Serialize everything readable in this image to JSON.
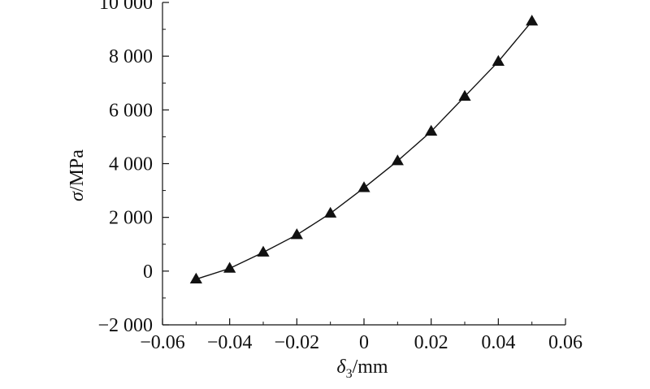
{
  "chart_data": {
    "type": "line",
    "title": "",
    "xlabel": {
      "symbol": "δ",
      "subscript": "3",
      "unit": "/mm"
    },
    "ylabel": {
      "symbol": "σ",
      "unit": "/MPa"
    },
    "xlim": [
      -0.06,
      0.06
    ],
    "ylim": [
      -2000,
      10000
    ],
    "xticks": [
      -0.06,
      -0.04,
      -0.02,
      0,
      0.02,
      0.04,
      0.06
    ],
    "xtick_labels": [
      "−0.06",
      "−0.04",
      "−0.02",
      "0",
      "0.02",
      "0.04",
      "0.06"
    ],
    "yticks": [
      -2000,
      0,
      2000,
      4000,
      6000,
      8000,
      10000
    ],
    "ytick_labels": [
      "−2 000",
      "0",
      "2 000",
      "4 000",
      "6 000",
      "8 000",
      "10 000"
    ],
    "grid": false,
    "series": [
      {
        "marker": "filled-triangle",
        "color": "#111111",
        "x": [
          -0.05,
          -0.04,
          -0.03,
          -0.02,
          -0.01,
          0,
          0.01,
          0.02,
          0.03,
          0.04,
          0.05
        ],
        "y": [
          -300,
          100,
          700,
          1350,
          2150,
          3100,
          4100,
          5200,
          6500,
          7800,
          9300
        ]
      }
    ]
  }
}
